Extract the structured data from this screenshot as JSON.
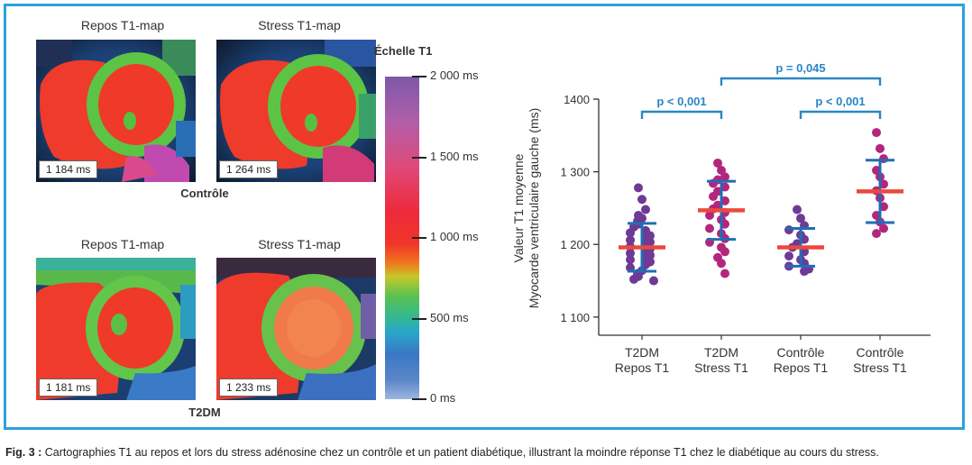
{
  "panels": {
    "top": {
      "left_title": "Repos T1-map",
      "right_title": "Stress T1-map",
      "left_value": "1 184 ms",
      "right_value": "1 264 ms",
      "group_label": "Contrôle"
    },
    "bottom": {
      "left_title": "Repos T1-map",
      "right_title": "Stress T1-map",
      "left_value": "1 181 ms",
      "right_value": "1 233 ms",
      "group_label": "T2DM"
    }
  },
  "scale": {
    "title": "Échelle T1",
    "ticks": [
      "2 000 ms",
      "1 500 ms",
      "1 000 ms",
      "500 ms",
      "0 ms"
    ]
  },
  "colors": {
    "frame": "#2aa2dc",
    "dot_purple": "#6f3996",
    "dot_magenta": "#b3267e",
    "mean_line": "#ea4a3c",
    "sd_line": "#1e6fb4",
    "bracket": "#2a86c6"
  },
  "chart_data": {
    "type": "scatter",
    "ylabel": "Valeur T1 moyenne Myocarde ventriculaire gauche (ms)",
    "ylabel_lines": [
      "Valeur T1 moyenne",
      "Myocarde ventriculaire gauche (ms)"
    ],
    "ylim": [
      1075,
      1400
    ],
    "yticks": [
      {
        "value": 1100,
        "label": "1 100"
      },
      {
        "value": 1200,
        "label": "1 200"
      },
      {
        "value": 1300,
        "label": "1 300"
      },
      {
        "value": 1400,
        "label": "1400"
      }
    ],
    "groups": [
      {
        "label_lines": [
          "T2DM",
          "Repos T1"
        ],
        "mean": 1196,
        "sd_low": 1163,
        "sd_high": 1229,
        "color": "#6f3996",
        "points": [
          1278,
          1262,
          1248,
          1240,
          1236,
          1232,
          1228,
          1224,
          1219,
          1216,
          1212,
          1209,
          1206,
          1203,
          1200,
          1197,
          1194,
          1191,
          1188,
          1185,
          1182,
          1179,
          1176,
          1172,
          1168,
          1164,
          1160,
          1156,
          1152,
          1150
        ]
      },
      {
        "label_lines": [
          "T2DM",
          "Stress T1"
        ],
        "mean": 1247,
        "sd_low": 1207,
        "sd_high": 1287,
        "color": "#b3267e",
        "points": [
          1312,
          1302,
          1293,
          1289,
          1284,
          1279,
          1273,
          1266,
          1260,
          1254,
          1249,
          1244,
          1240,
          1234,
          1228,
          1222,
          1215,
          1208,
          1203,
          1196,
          1190,
          1182,
          1174,
          1160
        ]
      },
      {
        "label_lines": [
          "Contrôle",
          "Repos T1"
        ],
        "mean": 1196,
        "sd_low": 1170,
        "sd_high": 1222,
        "color": "#6f3996",
        "points": [
          1248,
          1236,
          1226,
          1220,
          1213,
          1207,
          1201,
          1196,
          1190,
          1184,
          1179,
          1174,
          1170,
          1166,
          1163
        ]
      },
      {
        "label_lines": [
          "Contrôle",
          "Stress T1"
        ],
        "mean": 1273,
        "sd_low": 1230,
        "sd_high": 1316,
        "color": "#b3267e",
        "points": [
          1354,
          1332,
          1318,
          1302,
          1293,
          1283,
          1274,
          1264,
          1252,
          1240,
          1231,
          1222,
          1215
        ]
      }
    ],
    "comparisons": [
      {
        "from": 0,
        "to": 1,
        "label": "p < 0,001"
      },
      {
        "from": 2,
        "to": 3,
        "label": "p < 0,001"
      },
      {
        "from": 1,
        "to": 3,
        "label": "p = 0,045"
      }
    ]
  },
  "caption": {
    "prefix": "Fig. 3 :",
    "text": " Cartographies T1 au repos et lors du stress adénosine chez un contrôle et un patient diabétique, illustrant la moindre réponse T1 chez le diabétique au cours du stress."
  }
}
